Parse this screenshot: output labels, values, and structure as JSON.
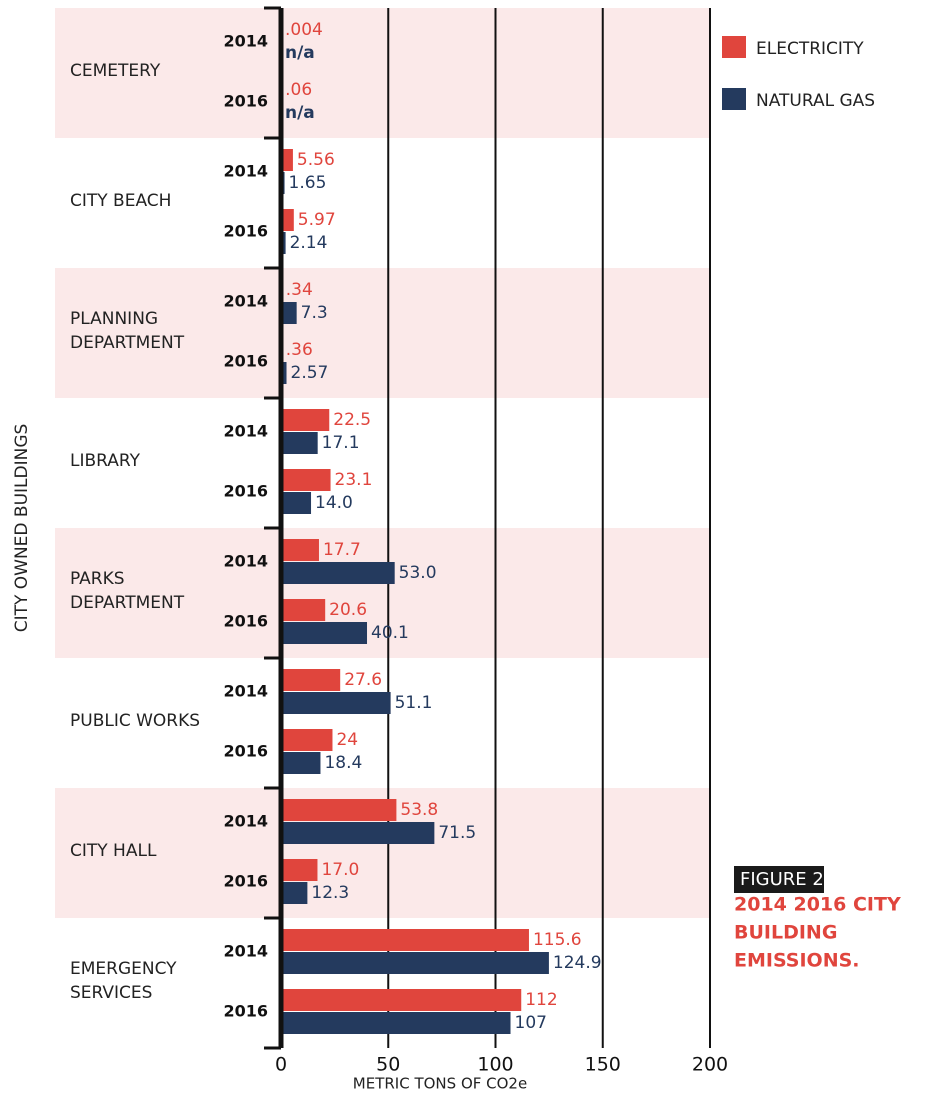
{
  "chart_data": {
    "type": "bar",
    "orientation": "horizontal",
    "figure_label": "FIGURE 2.",
    "title_lines": [
      "2014 2016 CITY",
      "BUILDING",
      "EMISSIONS."
    ],
    "x_label": "METRIC TONS OF CO2e",
    "y_label": "CITY OWNED BUILDINGS",
    "categories": [
      [
        "CEMETERY"
      ],
      [
        "CITY BEACH"
      ],
      [
        "PLANNING",
        "DEPARTMENT"
      ],
      [
        "LIBRARY"
      ],
      [
        "PARKS",
        "DEPARTMENT"
      ],
      [
        "PUBLIC WORKS"
      ],
      [
        "CITY HALL"
      ],
      [
        "EMERGENCY",
        "SERVICES"
      ]
    ],
    "subcategories": [
      "2014",
      "2016"
    ],
    "series": [
      {
        "name": "ELECTRICITY",
        "color": "#e0453d",
        "values": [
          [
            0.004,
            0.06
          ],
          [
            5.56,
            5.97
          ],
          [
            0.34,
            0.36
          ],
          [
            22.5,
            23.1
          ],
          [
            17.7,
            20.6
          ],
          [
            27.6,
            24
          ],
          [
            53.8,
            17.0
          ],
          [
            115.6,
            112
          ]
        ],
        "value_labels": [
          [
            ".004",
            ".06"
          ],
          [
            "5.56",
            "5.97"
          ],
          [
            ".34",
            ".36"
          ],
          [
            "22.5",
            "23.1"
          ],
          [
            "17.7",
            "20.6"
          ],
          [
            "27.6",
            "24"
          ],
          [
            "53.8",
            "17.0"
          ],
          [
            "115.6",
            "112"
          ]
        ]
      },
      {
        "name": "NATURAL GAS",
        "color": "#243a5e",
        "values": [
          [
            null,
            null
          ],
          [
            1.65,
            2.14
          ],
          [
            7.3,
            2.57
          ],
          [
            17.1,
            14.0
          ],
          [
            53.0,
            40.1
          ],
          [
            51.1,
            18.4
          ],
          [
            71.5,
            12.3
          ],
          [
            124.9,
            107
          ]
        ],
        "value_labels": [
          [
            "n/a",
            "n/a"
          ],
          [
            "1.65",
            "2.14"
          ],
          [
            "7.3",
            "2.57"
          ],
          [
            "17.1",
            "14.0"
          ],
          [
            "53.0",
            "40.1"
          ],
          [
            "51.1",
            "18.4"
          ],
          [
            "71.5",
            "12.3"
          ],
          [
            "124.9",
            "107"
          ]
        ]
      }
    ],
    "xlim": [
      0,
      200
    ],
    "xticks": [
      0,
      50,
      100,
      150,
      200
    ],
    "grid": true,
    "band_color": "#fbe9e9",
    "legend": "upper right"
  }
}
